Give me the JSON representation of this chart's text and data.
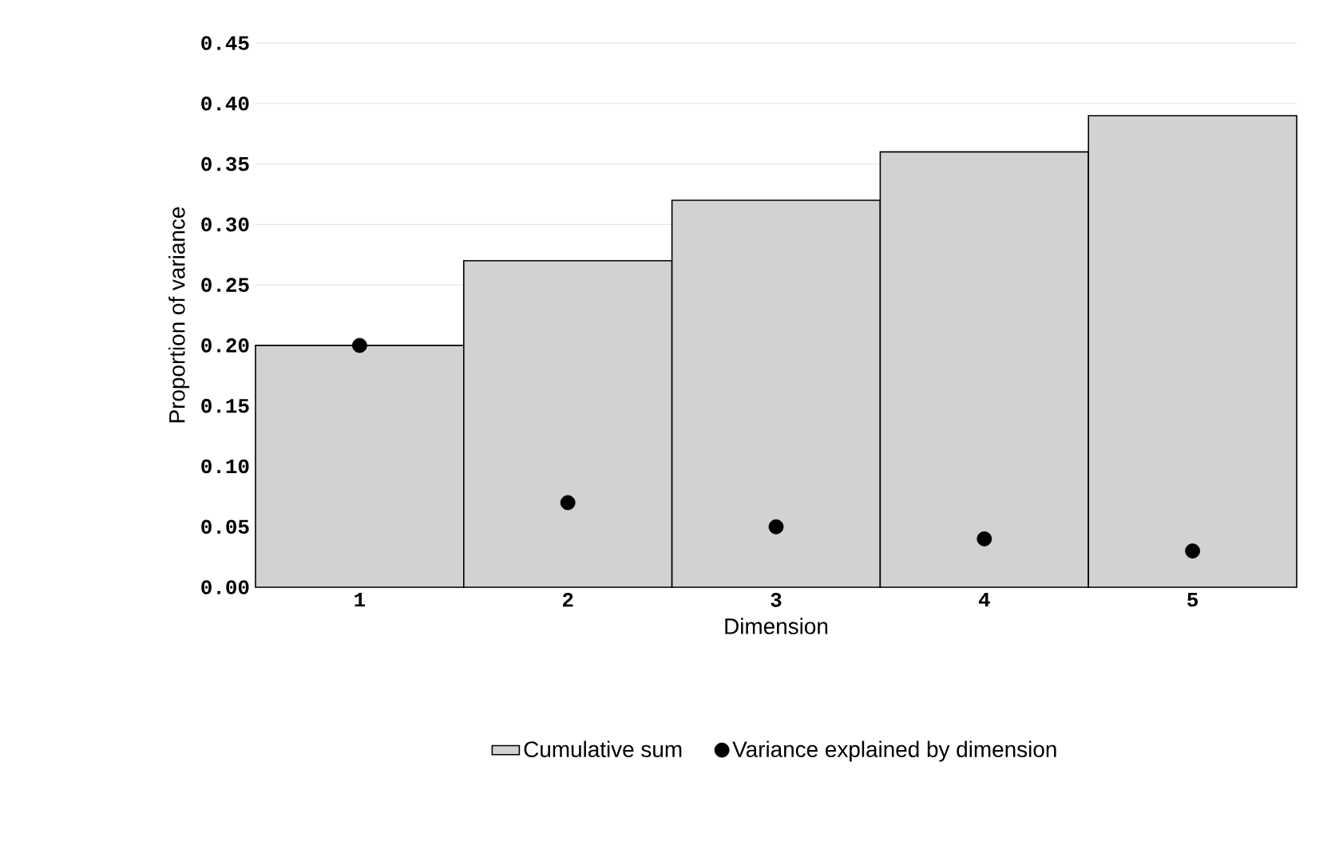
{
  "chart_data": {
    "type": "bar",
    "xlabel": "Dimension",
    "ylabel": "Proportion of variance",
    "categories": [
      "1",
      "2",
      "3",
      "4",
      "5"
    ],
    "series": [
      {
        "name": "Cumulative sum",
        "color": "#d3d1d3",
        "values": [
          0.2,
          0.27,
          0.32,
          0.36,
          0.39
        ]
      },
      {
        "name": "Variance explained by dimension",
        "type": "scatter",
        "color": "#000000",
        "marker": "circle",
        "x": [
          "1",
          "2",
          "3",
          "4",
          "5"
        ],
        "values": [
          0.2,
          0.07,
          0.05,
          0.04,
          0.03
        ]
      }
    ],
    "ylim": [
      0,
      0.45
    ],
    "yticks": [
      {
        "value": 0,
        "label": "0.00"
      },
      {
        "value": 0.05,
        "label": "0.05"
      },
      {
        "value": 0.1,
        "label": "0.10"
      },
      {
        "value": 0.15,
        "label": "0.15"
      },
      {
        "value": 0.2,
        "label": "0.20"
      },
      {
        "value": 0.25,
        "label": "0.25"
      },
      {
        "value": 0.3,
        "label": "0.30"
      },
      {
        "value": 0.35,
        "label": "0.35"
      },
      {
        "value": 0.4,
        "label": "0.40"
      },
      {
        "value": 0.45,
        "label": "0.45"
      }
    ],
    "grid": "y",
    "legend": "bottom"
  }
}
